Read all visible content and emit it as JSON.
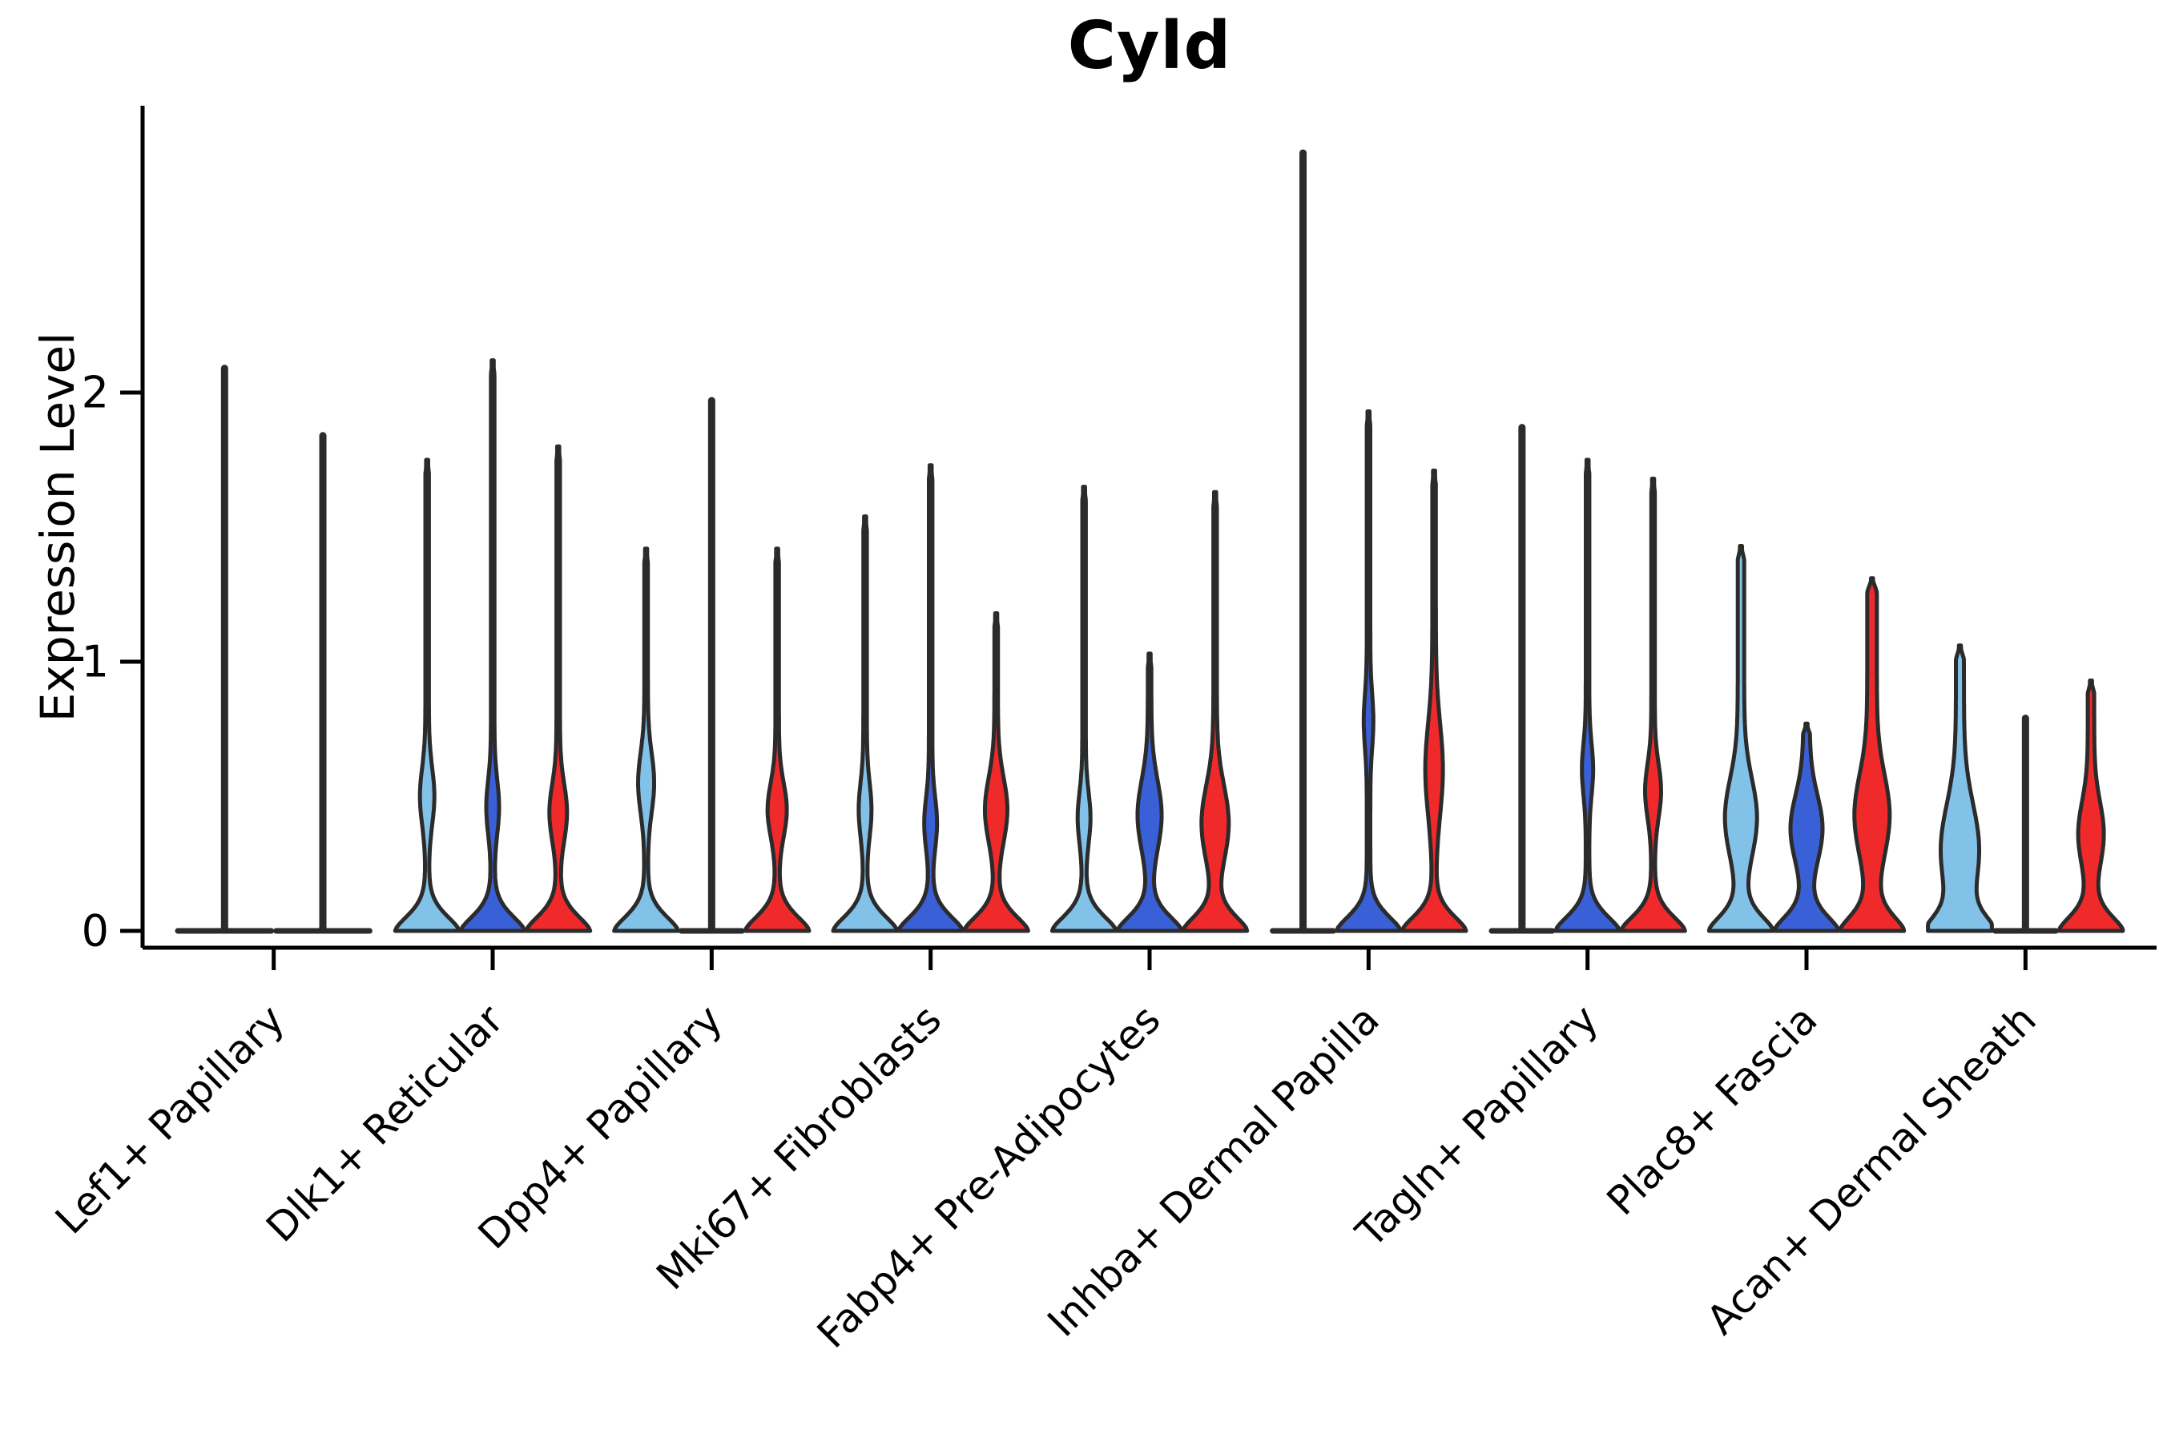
{
  "chart_data": {
    "type": "violin",
    "title": "Cyld",
    "xlabel": "",
    "ylabel": "Expression Level",
    "ytick_labels": [
      "0",
      "1",
      "2"
    ],
    "ytick_values": [
      0,
      1,
      2
    ],
    "ylim": [
      -0.06,
      3.06
    ],
    "grid": "off",
    "legend": "none",
    "x_tick_rotation_deg": 45,
    "colors": {
      "light_blue": "#82C2E8",
      "dark_blue": "#3A60D8",
      "red": "#F02A2A",
      "outline": "#2B2B2B",
      "axis": "#000000"
    },
    "categories": [
      "Lef1+ Papillary",
      "Dlk1+ Reticular",
      "Dpp4+ Papillary",
      "Mki67+ Fibroblasts",
      "Fabp4+ Pre-Adipocytes",
      "Inhba+ Dermal Papilla",
      "Tagln+ Papillary",
      "Plac8+ Fascia",
      "Acan+ Dermal Sheath"
    ],
    "series_note": "Each cluster shows up to three violins (conditions) in order: light_blue, dark_blue, red; violins rendered as a flat line + spike are near-zero density (collapsed).",
    "groups": [
      {
        "label": "Lef1+ Papillary",
        "violins": [
          {
            "color": "light_blue",
            "peak": 2.09,
            "collapsed": true
          },
          {
            "color": "dark_blue",
            "peak": 1.84,
            "collapsed": true
          }
        ]
      },
      {
        "label": "Dlk1+ Reticular",
        "violins": [
          {
            "color": "light_blue",
            "peak": 1.75,
            "collapsed": false,
            "bulge": {
              "mu": 0.5,
              "sig": 0.105,
              "hw": 9
            }
          },
          {
            "color": "dark_blue",
            "peak": 2.12,
            "collapsed": false,
            "bulge": {
              "mu": 0.46,
              "sig": 0.1,
              "hw": 8
            }
          },
          {
            "color": "red",
            "peak": 1.8,
            "collapsed": false,
            "bulge": {
              "mu": 0.44,
              "sig": 0.105,
              "hw": 11
            }
          }
        ]
      },
      {
        "label": "Dpp4+ Papillary",
        "violins": [
          {
            "color": "light_blue",
            "peak": 1.42,
            "collapsed": false,
            "bulge": {
              "mu": 0.55,
              "sig": 0.11,
              "hw": 10
            }
          },
          {
            "color": "dark_blue",
            "peak": 1.97,
            "collapsed": true
          },
          {
            "color": "red",
            "peak": 1.42,
            "collapsed": false,
            "bulge": {
              "mu": 0.45,
              "sig": 0.1,
              "hw": 12
            }
          }
        ]
      },
      {
        "label": "Mki67+ Fibroblasts",
        "violins": [
          {
            "color": "light_blue",
            "peak": 1.54,
            "collapsed": false,
            "bulge": {
              "mu": 0.45,
              "sig": 0.1,
              "hw": 8
            }
          },
          {
            "color": "dark_blue",
            "peak": 1.73,
            "collapsed": false,
            "bulge": {
              "mu": 0.4,
              "sig": 0.095,
              "hw": 8
            }
          },
          {
            "color": "red",
            "peak": 1.18,
            "collapsed": false,
            "bulge": {
              "mu": 0.45,
              "sig": 0.12,
              "hw": 14
            }
          }
        ]
      },
      {
        "label": "Fabp4+ Pre-Adipocytes",
        "violins": [
          {
            "color": "light_blue",
            "peak": 1.65,
            "collapsed": false,
            "bulge": {
              "mu": 0.42,
              "sig": 0.095,
              "hw": 8
            }
          },
          {
            "color": "dark_blue",
            "peak": 1.03,
            "collapsed": false,
            "bulge": {
              "mu": 0.43,
              "sig": 0.13,
              "hw": 15
            }
          },
          {
            "color": "red",
            "peak": 1.63,
            "collapsed": false,
            "bulge": {
              "mu": 0.4,
              "sig": 0.14,
              "hw": 17
            }
          }
        ]
      },
      {
        "label": "Inhba+ Dermal Papilla",
        "violins": [
          {
            "color": "light_blue",
            "peak": 2.89,
            "collapsed": true
          },
          {
            "color": "dark_blue",
            "peak": 1.93,
            "collapsed": false,
            "bulge": {
              "mu": 0.78,
              "sig": 0.1,
              "hw": 6
            }
          },
          {
            "color": "red",
            "peak": 1.71,
            "collapsed": false,
            "bulge": {
              "mu": 0.6,
              "sig": 0.17,
              "hw": 11
            }
          }
        ]
      },
      {
        "label": "Tagln+ Papillary",
        "violins": [
          {
            "color": "light_blue",
            "peak": 1.87,
            "collapsed": true
          },
          {
            "color": "dark_blue",
            "peak": 1.75,
            "collapsed": false,
            "bulge": {
              "mu": 0.6,
              "sig": 0.095,
              "hw": 7
            }
          },
          {
            "color": "red",
            "peak": 1.68,
            "collapsed": false,
            "bulge": {
              "mu": 0.52,
              "sig": 0.1,
              "hw": 10
            }
          }
        ]
      },
      {
        "label": "Plac8+ Fascia",
        "violins": [
          {
            "color": "light_blue",
            "peak": 1.43,
            "collapsed": false,
            "stem": 4,
            "bulge": {
              "mu": 0.42,
              "sig": 0.145,
              "hw": 20
            }
          },
          {
            "color": "dark_blue",
            "peak": 0.77,
            "collapsed": false,
            "stem": 4,
            "bulge": {
              "mu": 0.38,
              "sig": 0.125,
              "hw": 20
            }
          },
          {
            "color": "red",
            "peak": 1.31,
            "collapsed": false,
            "stem": 6,
            "bulge": {
              "mu": 0.43,
              "sig": 0.15,
              "hw": 22
            }
          }
        ]
      },
      {
        "label": "Acan+ Dermal Sheath",
        "violins": [
          {
            "color": "light_blue",
            "peak": 1.06,
            "collapsed": false,
            "stem": 5,
            "bulge": {
              "mu": 0.3,
              "sig": 0.17,
              "hw": 24
            }
          },
          {
            "color": "dark_blue",
            "peak": 0.79,
            "collapsed": true
          },
          {
            "color": "red",
            "peak": 0.93,
            "collapsed": false,
            "stem": 4,
            "bulge": {
              "mu": 0.36,
              "sig": 0.12,
              "hw": 16
            }
          }
        ]
      }
    ]
  }
}
